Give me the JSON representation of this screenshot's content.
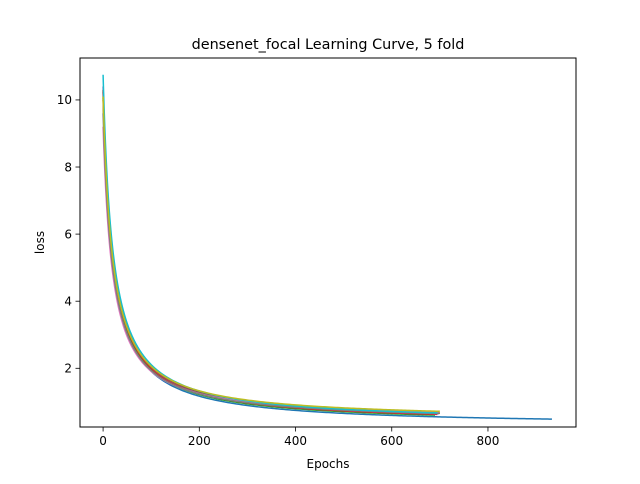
{
  "chart_data": {
    "type": "line",
    "title": "densenet_focal Learning Curve, 5 fold",
    "xlabel": "Epochs",
    "ylabel": "loss",
    "xlim": [
      -48,
      983
    ],
    "ylim": [
      0.25,
      11.25
    ],
    "grid": false,
    "x_ticks": [
      0,
      200,
      400,
      600,
      800
    ],
    "y_ticks": [
      2,
      4,
      6,
      8,
      10
    ],
    "curve_model": {
      "description": "each series approximates loss(epoch) = c + (a - c) * 20 / (epoch + 20); points sampled from epoch 0 to end_epoch",
      "denominator_offset": 20
    },
    "series": [
      {
        "color": "#1f77b4",
        "start": 10.05,
        "floor": 0.28,
        "end_epoch": 933
      },
      {
        "color": "#ff7f0e",
        "start": 10.0,
        "floor": 0.4,
        "end_epoch": 700
      },
      {
        "color": "#2ca02c",
        "start": 10.1,
        "floor": 0.33,
        "end_epoch": 690
      },
      {
        "color": "#d62728",
        "start": 10.25,
        "floor": 0.35,
        "end_epoch": 695
      },
      {
        "color": "#9467bd",
        "start": 10.4,
        "floor": 0.37,
        "end_epoch": 698
      },
      {
        "color": "#8c564b",
        "start": 10.3,
        "floor": 0.39,
        "end_epoch": 700
      },
      {
        "color": "#e377c2",
        "start": 9.2,
        "floor": 0.45,
        "end_epoch": 697
      },
      {
        "color": "#7f7f7f",
        "start": 9.6,
        "floor": 0.4,
        "end_epoch": 700
      },
      {
        "color": "#17becf",
        "start": 10.75,
        "floor": 0.38,
        "end_epoch": 695
      },
      {
        "color": "#bcbd22",
        "start": 10.1,
        "floor": 0.45,
        "end_epoch": 700
      }
    ]
  }
}
